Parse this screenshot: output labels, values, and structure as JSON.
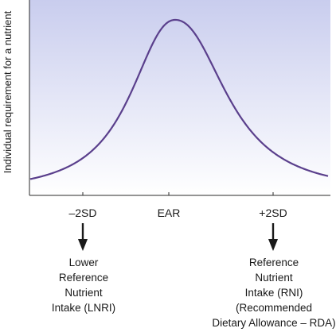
{
  "y_axis_label": "Individual requirement for a nutrient",
  "ticks": [
    "–2SD",
    "EAR",
    "+2SD"
  ],
  "left_caption": [
    "Lower",
    "Reference",
    "Nutrient",
    "Intake (LNRI)"
  ],
  "right_caption": [
    "Reference",
    "Nutrient",
    "Intake (RNI)",
    "(Recommended",
    "Dietary Allowance – RDA)"
  ],
  "colors": {
    "curve": "#5a3f8c",
    "panel_top": "#c9cdee",
    "panel_bottom": "#ffffff",
    "text": "#1a1a1a"
  }
}
